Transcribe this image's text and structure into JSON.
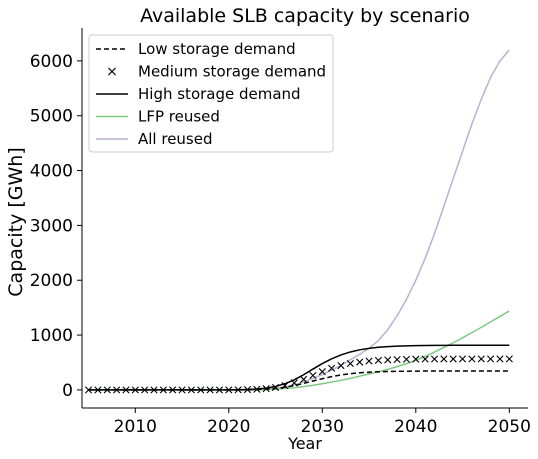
{
  "chart_data": {
    "type": "line",
    "title": "Available SLB capacity by scenario",
    "xlabel": "Year",
    "ylabel": "Capacity [GWh]",
    "xlim": [
      2004.3,
      2052
    ],
    "ylim": [
      -330,
      6600
    ],
    "xticks": [
      2010,
      2020,
      2030,
      2040,
      2050
    ],
    "yticks": [
      0,
      1000,
      2000,
      3000,
      4000,
      5000,
      6000
    ],
    "legend_position": "top-left",
    "grid": false,
    "x": [
      2005,
      2006,
      2007,
      2008,
      2009,
      2010,
      2011,
      2012,
      2013,
      2014,
      2015,
      2016,
      2017,
      2018,
      2019,
      2020,
      2021,
      2022,
      2023,
      2024,
      2025,
      2026,
      2027,
      2028,
      2029,
      2030,
      2031,
      2032,
      2033,
      2034,
      2035,
      2036,
      2037,
      2038,
      2039,
      2040,
      2041,
      2042,
      2043,
      2044,
      2045,
      2046,
      2047,
      2048,
      2049,
      2050
    ],
    "series": [
      {
        "name": "Low storage demand",
        "style": "dashed",
        "color": "#000000",
        "values": [
          0,
          0,
          0,
          0,
          0,
          0,
          0,
          0,
          0,
          0,
          0,
          0,
          0,
          0,
          0,
          0,
          1,
          3,
          7,
          14,
          27,
          48,
          79,
          118,
          162,
          204,
          242,
          273,
          296,
          312,
          323,
          331,
          336,
          339,
          341,
          343,
          344,
          344,
          345,
          345,
          345,
          345,
          345,
          345,
          345,
          345
        ]
      },
      {
        "name": "Medium storage demand",
        "style": "x-markers",
        "color": "#000000",
        "values": [
          0,
          0,
          0,
          0,
          0,
          0,
          0,
          0,
          0,
          0,
          0,
          0,
          0,
          0,
          0,
          0,
          2,
          5,
          11,
          23,
          44,
          78,
          128,
          192,
          264,
          333,
          394,
          443,
          480,
          507,
          526,
          539,
          548,
          554,
          558,
          561,
          562,
          563,
          564,
          564,
          565,
          565,
          565,
          565,
          565,
          565
        ]
      },
      {
        "name": "High storage demand",
        "style": "solid",
        "color": "#000000",
        "values": [
          0,
          0,
          0,
          0,
          0,
          0,
          0,
          0,
          0,
          0,
          0,
          0,
          0,
          0,
          0,
          0,
          3,
          7,
          16,
          33,
          63,
          112,
          184,
          276,
          380,
          480,
          567,
          638,
          692,
          731,
          758,
          777,
          789,
          798,
          804,
          808,
          810,
          812,
          813,
          814,
          814,
          814,
          815,
          815,
          815,
          815
        ]
      },
      {
        "name": "LFP reused",
        "style": "solid",
        "color": "#7fc97f",
        "values": [
          0,
          0,
          0,
          0,
          0,
          0,
          0,
          0,
          0,
          0,
          0,
          0,
          0,
          0,
          0,
          0,
          0,
          1,
          3,
          7,
          14,
          25,
          40,
          60,
          84,
          112,
          143,
          175,
          210,
          250,
          290,
          330,
          375,
          425,
          480,
          540,
          610,
          690,
          775,
          860,
          950,
          1045,
          1140,
          1240,
          1340,
          1440
        ]
      },
      {
        "name": "All reused",
        "style": "solid",
        "color": "#beaed4",
        "values": [
          0,
          0,
          0,
          0,
          0,
          0,
          0,
          0,
          0,
          0,
          0,
          0,
          0,
          0,
          0,
          0,
          0,
          2,
          5,
          12,
          25,
          50,
          90,
          145,
          210,
          280,
          360,
          450,
          550,
          650,
          760,
          900,
          1100,
          1350,
          1650,
          2000,
          2400,
          2850,
          3350,
          3850,
          4350,
          4850,
          5300,
          5700,
          6000,
          6200
        ]
      }
    ]
  }
}
